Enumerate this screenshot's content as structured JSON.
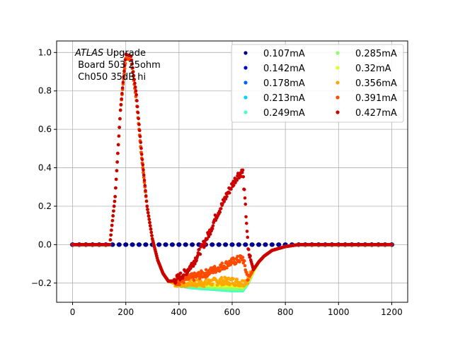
{
  "chart_data": {
    "type": "scatter",
    "title": "",
    "xlabel": "",
    "ylabel": "",
    "xlim": [
      -60,
      1260
    ],
    "ylim": [
      -0.3,
      1.06
    ],
    "xticks": [
      0,
      200,
      400,
      600,
      800,
      1000,
      1200
    ],
    "yticks": [
      -0.2,
      0.0,
      0.2,
      0.4,
      0.6,
      0.8,
      1.0
    ],
    "xtick_labels": [
      "0",
      "200",
      "400",
      "600",
      "800",
      "1000",
      "1200"
    ],
    "ytick_labels": [
      "−0.2",
      "0.0",
      "0.2",
      "0.4",
      "0.6",
      "0.8",
      "1.0"
    ],
    "grid": true,
    "legend_position": "top-right",
    "legend_columns": 2,
    "annotation": {
      "italic": "ATLAS",
      "rest": " Upgrade",
      "line2": " Board 503 25ohm",
      "line3": " Ch050 35dB hi"
    },
    "series": [
      {
        "name": "0.107mA",
        "color": "#00008f",
        "kind": "flat",
        "x": [
          0,
          25,
          50,
          75,
          100,
          125,
          150,
          175,
          200,
          225,
          250,
          275,
          300,
          325,
          350,
          375,
          400,
          425,
          450,
          475,
          500,
          525,
          550,
          575,
          600,
          625,
          650,
          675,
          700,
          725,
          750,
          775,
          800,
          825,
          850,
          875,
          900,
          925,
          950,
          975,
          1000,
          1025,
          1050,
          1075,
          1100,
          1125,
          1150,
          1175,
          1200
        ],
        "y": [
          0,
          0,
          0,
          0,
          0,
          0,
          0,
          0,
          0,
          0,
          0,
          0,
          0,
          0,
          0,
          0,
          0,
          0,
          0,
          0,
          0,
          0,
          0,
          0,
          0,
          0,
          0,
          0,
          0,
          0,
          0,
          0,
          0,
          0,
          0,
          0,
          0,
          0,
          0,
          0,
          0,
          0,
          0,
          0,
          0,
          0,
          0,
          0,
          0
        ]
      },
      {
        "name": "0.142mA",
        "color": "#0000dd",
        "kind": "pulse",
        "x": [
          0,
          140,
          160,
          180,
          200,
          220,
          240,
          260,
          280,
          300,
          320,
          340,
          360,
          380,
          400,
          450,
          500,
          550,
          600,
          640,
          660,
          680,
          700,
          720,
          750,
          800,
          850,
          900,
          1000,
          1100,
          1200
        ],
        "y": [
          0,
          0,
          0.25,
          0.7,
          0.97,
          0.96,
          0.75,
          0.45,
          0.2,
          0.03,
          -0.08,
          -0.15,
          -0.19,
          -0.2,
          -0.21,
          -0.22,
          -0.225,
          -0.23,
          -0.235,
          -0.235,
          -0.2,
          -0.14,
          -0.09,
          -0.06,
          -0.03,
          -0.01,
          0,
          0,
          0,
          0,
          0
        ]
      },
      {
        "name": "0.178mA",
        "color": "#0064ff",
        "kind": "pulse",
        "x": [
          0,
          140,
          160,
          180,
          200,
          220,
          240,
          260,
          280,
          300,
          320,
          340,
          360,
          380,
          400,
          450,
          500,
          550,
          600,
          640,
          660,
          680,
          700,
          720,
          750,
          800,
          850,
          900,
          1000,
          1100,
          1200
        ],
        "y": [
          0,
          0,
          0.25,
          0.7,
          0.97,
          0.96,
          0.75,
          0.45,
          0.2,
          0.03,
          -0.08,
          -0.15,
          -0.19,
          -0.2,
          -0.21,
          -0.22,
          -0.225,
          -0.23,
          -0.235,
          -0.235,
          -0.2,
          -0.14,
          -0.09,
          -0.06,
          -0.03,
          -0.01,
          0,
          0,
          0,
          0,
          0
        ]
      },
      {
        "name": "0.213mA",
        "color": "#00d4ff",
        "kind": "pulse",
        "x": [
          0,
          140,
          160,
          180,
          200,
          220,
          240,
          260,
          280,
          300,
          320,
          340,
          360,
          380,
          400,
          450,
          500,
          550,
          600,
          640,
          660,
          680,
          700,
          720,
          750,
          800,
          850,
          900,
          1000,
          1100,
          1200
        ],
        "y": [
          0,
          0,
          0.25,
          0.7,
          0.97,
          0.96,
          0.75,
          0.45,
          0.2,
          0.03,
          -0.08,
          -0.15,
          -0.19,
          -0.2,
          -0.21,
          -0.22,
          -0.225,
          -0.23,
          -0.24,
          -0.24,
          -0.2,
          -0.14,
          -0.09,
          -0.06,
          -0.03,
          -0.01,
          0,
          0,
          0,
          0,
          0
        ]
      },
      {
        "name": "0.249mA",
        "color": "#4dffc0",
        "kind": "pulse",
        "x": [
          0,
          140,
          160,
          180,
          200,
          220,
          240,
          260,
          280,
          300,
          320,
          340,
          360,
          380,
          400,
          450,
          500,
          550,
          600,
          640,
          660,
          680,
          700,
          720,
          750,
          800,
          850,
          900,
          1000,
          1100,
          1200
        ],
        "y": [
          0,
          0,
          0.25,
          0.7,
          0.97,
          0.96,
          0.75,
          0.45,
          0.2,
          0.03,
          -0.08,
          -0.15,
          -0.19,
          -0.2,
          -0.215,
          -0.225,
          -0.23,
          -0.235,
          -0.24,
          -0.24,
          -0.2,
          -0.14,
          -0.09,
          -0.06,
          -0.03,
          -0.01,
          0,
          0,
          0,
          0,
          0
        ]
      },
      {
        "name": "0.285mA",
        "color": "#8fff6f",
        "kind": "pulse",
        "x": [
          0,
          140,
          160,
          180,
          200,
          220,
          240,
          260,
          280,
          300,
          320,
          340,
          360,
          380,
          400,
          450,
          500,
          550,
          600,
          640,
          660,
          680,
          700,
          720,
          750,
          800,
          850,
          900,
          1000,
          1100,
          1200
        ],
        "y": [
          0,
          0,
          0.25,
          0.7,
          0.97,
          0.96,
          0.75,
          0.45,
          0.2,
          0.03,
          -0.08,
          -0.15,
          -0.19,
          -0.2,
          -0.21,
          -0.215,
          -0.22,
          -0.225,
          -0.23,
          -0.23,
          -0.2,
          -0.14,
          -0.09,
          -0.06,
          -0.03,
          -0.01,
          0,
          0,
          0,
          0,
          0
        ]
      },
      {
        "name": "0.32mA",
        "color": "#e0ff1a",
        "kind": "pulse",
        "x": [
          0,
          140,
          160,
          180,
          200,
          220,
          240,
          260,
          280,
          300,
          320,
          340,
          360,
          380,
          400,
          450,
          500,
          550,
          600,
          640,
          660,
          680,
          700,
          720,
          750,
          800,
          850,
          900,
          1000,
          1100,
          1200
        ],
        "y": [
          0,
          0,
          0.25,
          0.7,
          0.97,
          0.96,
          0.75,
          0.45,
          0.2,
          0.03,
          -0.08,
          -0.15,
          -0.19,
          -0.2,
          -0.205,
          -0.21,
          -0.21,
          -0.215,
          -0.215,
          -0.22,
          -0.19,
          -0.14,
          -0.09,
          -0.06,
          -0.03,
          -0.01,
          0,
          0,
          0,
          0,
          0
        ]
      },
      {
        "name": "0.356mA",
        "color": "#ffa800",
        "kind": "pulse",
        "x": [
          0,
          140,
          160,
          180,
          200,
          220,
          240,
          260,
          280,
          300,
          320,
          340,
          360,
          380,
          400,
          450,
          500,
          550,
          600,
          640,
          660,
          680,
          700,
          720,
          750,
          800,
          850,
          900,
          1000,
          1100,
          1200
        ],
        "y": [
          0,
          0,
          0.25,
          0.7,
          0.97,
          0.96,
          0.75,
          0.45,
          0.2,
          0.03,
          -0.08,
          -0.15,
          -0.19,
          -0.2,
          -0.2,
          -0.2,
          -0.2,
          -0.19,
          -0.19,
          -0.2,
          -0.18,
          -0.13,
          -0.09,
          -0.06,
          -0.03,
          -0.01,
          0,
          0,
          0,
          0,
          0
        ]
      },
      {
        "name": "0.391mA",
        "color": "#ff4a00",
        "kind": "pulse",
        "x": [
          0,
          140,
          160,
          180,
          200,
          220,
          240,
          260,
          280,
          300,
          320,
          340,
          360,
          380,
          400,
          450,
          500,
          550,
          600,
          640,
          660,
          680,
          700,
          720,
          750,
          800,
          850,
          900,
          1000,
          1100,
          1200
        ],
        "y": [
          0,
          0,
          0.25,
          0.7,
          0.97,
          0.96,
          0.75,
          0.45,
          0.2,
          0.03,
          -0.08,
          -0.15,
          -0.19,
          -0.19,
          -0.19,
          -0.17,
          -0.15,
          -0.12,
          -0.09,
          -0.07,
          -0.18,
          -0.13,
          -0.09,
          -0.06,
          -0.03,
          -0.01,
          0,
          0,
          0,
          0,
          0
        ]
      },
      {
        "name": "0.427mA",
        "color": "#cc0000",
        "kind": "pulse",
        "x": [
          0,
          140,
          160,
          180,
          200,
          220,
          240,
          260,
          280,
          300,
          320,
          340,
          360,
          380,
          400,
          420,
          440,
          460,
          480,
          500,
          520,
          540,
          560,
          580,
          600,
          620,
          640,
          655,
          660,
          680,
          700,
          720,
          750,
          800,
          850,
          900,
          1000,
          1100,
          1200
        ],
        "y": [
          0,
          0,
          0.25,
          0.7,
          0.99,
          0.98,
          0.78,
          0.47,
          0.2,
          0.03,
          -0.08,
          -0.15,
          -0.19,
          -0.19,
          -0.17,
          -0.15,
          -0.12,
          -0.08,
          -0.03,
          0.02,
          0.08,
          0.15,
          0.2,
          0.26,
          0.31,
          0.36,
          0.38,
          0.1,
          -0.03,
          -0.13,
          -0.09,
          -0.06,
          -0.03,
          -0.01,
          0,
          0,
          0,
          0,
          0
        ]
      }
    ]
  }
}
